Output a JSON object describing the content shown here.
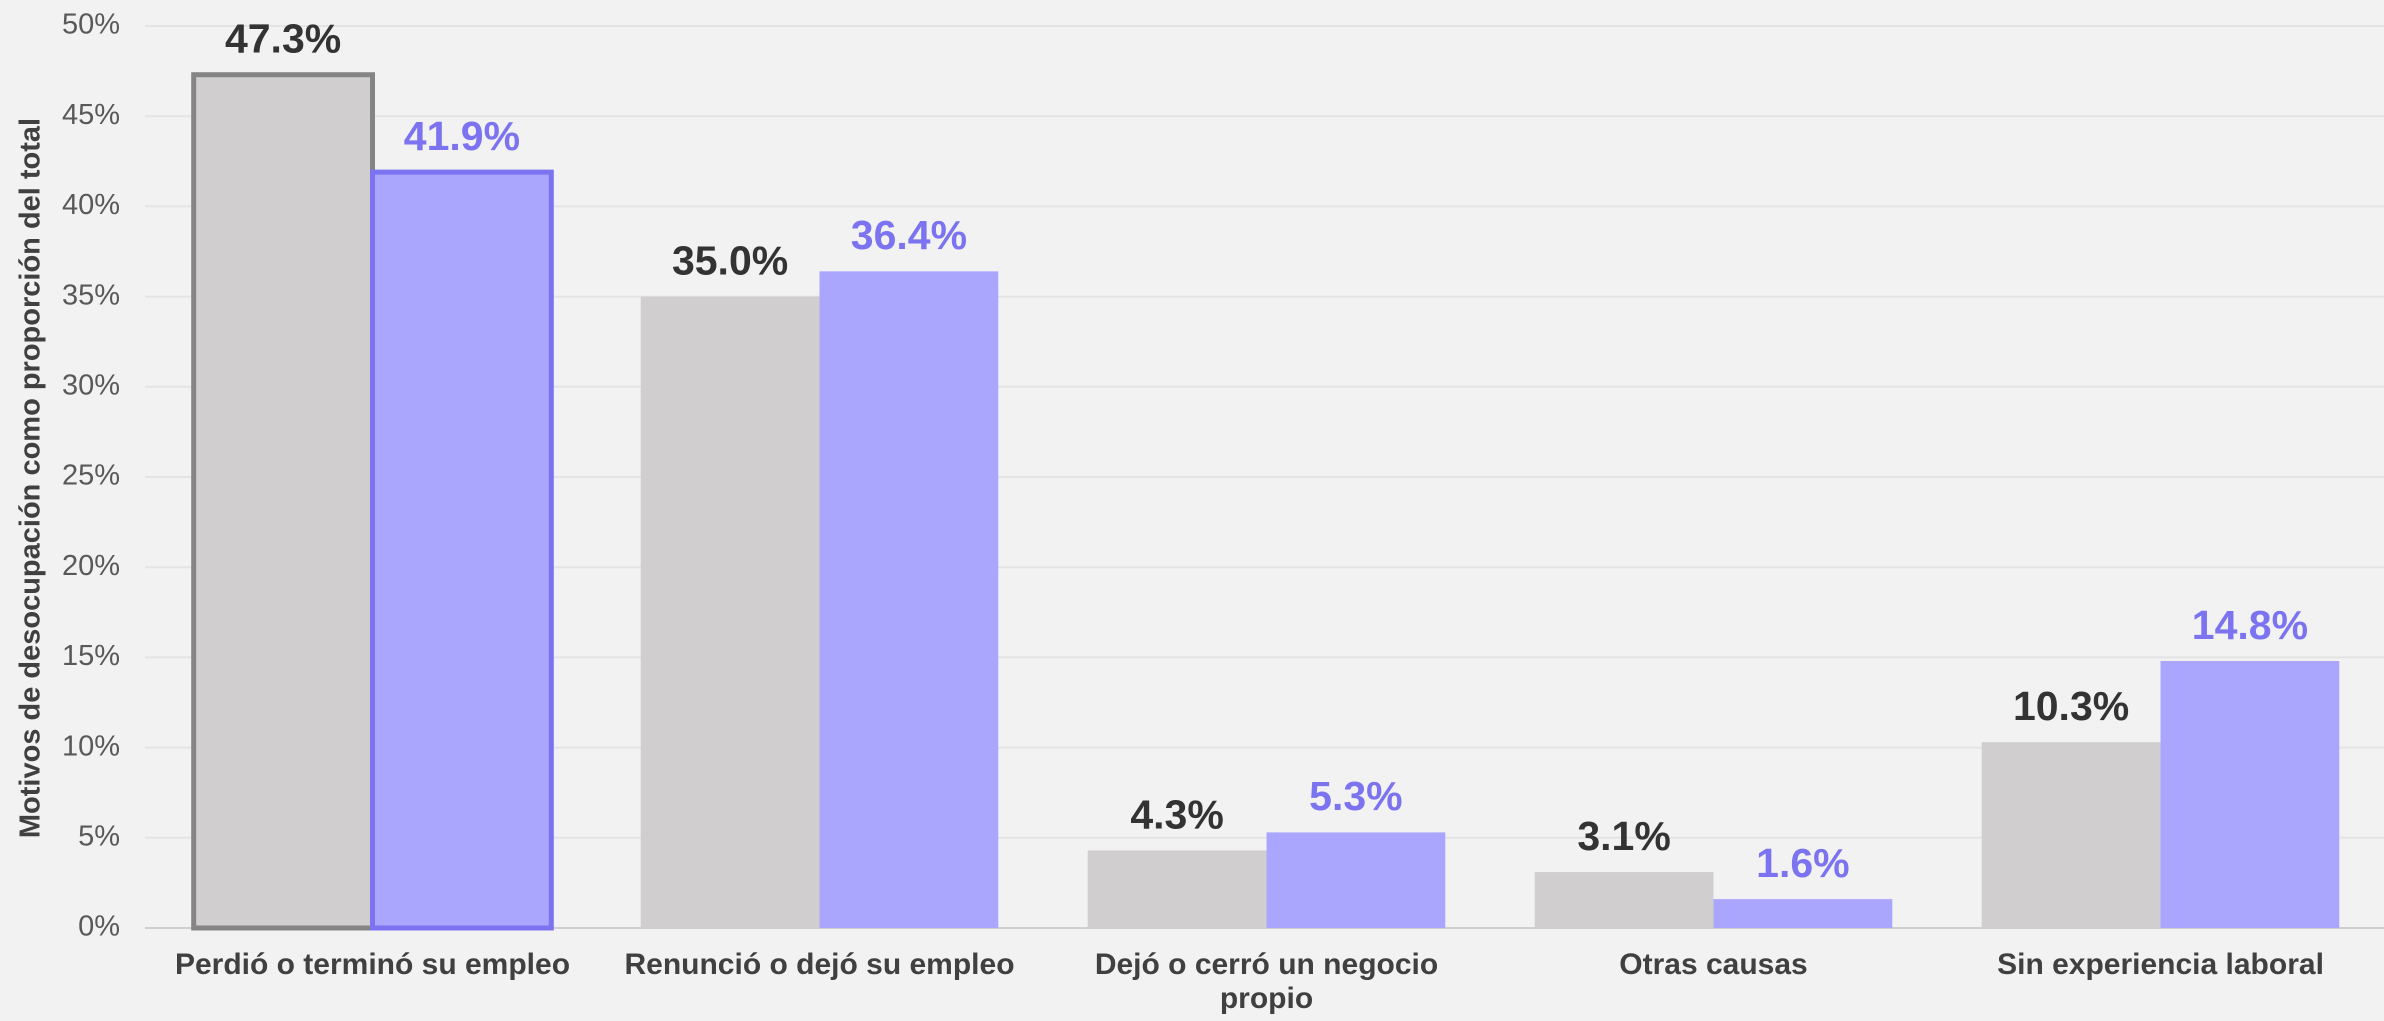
{
  "chart_data": {
    "type": "bar",
    "y_label": "Motivos de desocupación como proporción del total",
    "categories": [
      "Perdió o terminó su empleo",
      "Renunció o dejó su empleo",
      "Dejó o cerró un negocio propio",
      "Otras causas",
      "Sin experiencia laboral"
    ],
    "series": [
      {
        "color": "#d0cece",
        "label_color": "#333333",
        "outline_color": "#858585",
        "values": [
          47.3,
          35.0,
          4.3,
          3.1,
          10.3
        ],
        "value_labels": [
          "47.3%",
          "35.0%",
          "4.3%",
          "3.1%",
          "10.3%"
        ]
      },
      {
        "color": "#aaa6fe",
        "label_color": "#7b73f0",
        "outline_color": "#7b73f0",
        "values": [
          41.9,
          36.4,
          5.3,
          1.6,
          14.8
        ],
        "value_labels": [
          "41.9%",
          "36.4%",
          "5.3%",
          "1.6%",
          "14.8%"
        ]
      }
    ],
    "highlighted_index": 0,
    "ylim": [
      0,
      50
    ],
    "yticks": [
      {
        "value": 0,
        "label": "0%"
      },
      {
        "value": 5,
        "label": "5%"
      },
      {
        "value": 10,
        "label": "10%"
      },
      {
        "value": 15,
        "label": "15%"
      },
      {
        "value": 20,
        "label": "20%"
      },
      {
        "value": 25,
        "label": "25%"
      },
      {
        "value": 30,
        "label": "30%"
      },
      {
        "value": 35,
        "label": "35%"
      },
      {
        "value": 40,
        "label": "40%"
      },
      {
        "value": 45,
        "label": "45%"
      },
      {
        "value": 50,
        "label": "50%"
      }
    ],
    "grid": true
  }
}
